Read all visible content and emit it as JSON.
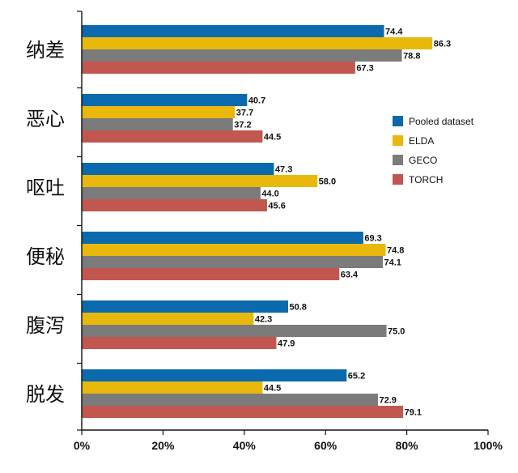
{
  "chart_data": {
    "type": "bar",
    "orientation": "horizontal",
    "categories": [
      "纳差",
      "恶心",
      "呕吐",
      "便秘",
      "腹泻",
      "脱发"
    ],
    "series": [
      {
        "name": "Pooled dataset",
        "color": "#0a6aad",
        "values": [
          74.4,
          40.7,
          47.3,
          69.3,
          50.8,
          65.2
        ]
      },
      {
        "name": "ELDA",
        "color": "#e8b80c",
        "values": [
          86.3,
          37.7,
          58.0,
          74.8,
          42.3,
          44.5
        ]
      },
      {
        "name": "GECO",
        "color": "#7b7b7b",
        "values": [
          78.8,
          37.2,
          44.0,
          74.1,
          75.0,
          72.9
        ]
      },
      {
        "name": "TORCH",
        "color": "#c1574f",
        "values": [
          67.3,
          44.5,
          45.6,
          63.4,
          47.9,
          79.1
        ]
      }
    ],
    "xticks": [
      "0%",
      "20%",
      "40%",
      "60%",
      "80%",
      "100%"
    ],
    "xlim": [
      0,
      100
    ],
    "title": "",
    "xlabel": "",
    "ylabel": "",
    "grid": false,
    "legend": "right"
  }
}
